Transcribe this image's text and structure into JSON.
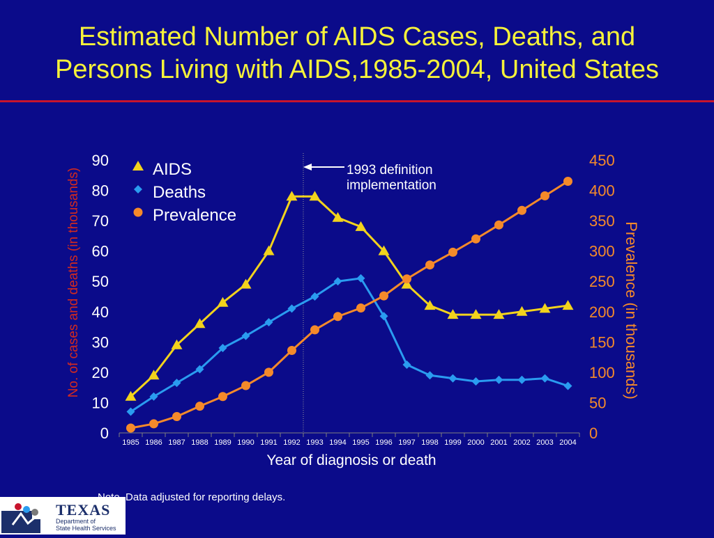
{
  "title_line1": "Estimated Number of AIDS Cases, Deaths, and",
  "title_line2": "Persons Living with AIDS,1985-2004, United States",
  "note": "Note. Data adjusted for reporting delays.",
  "logo": {
    "name": "TEXAS",
    "subtitle_line1": "Department of",
    "subtitle_line2": "State Health Services"
  },
  "colors": {
    "background": "#0b0b8a",
    "title": "#f6f23a",
    "aids": "#f2d31c",
    "deaths": "#2a9cf0",
    "prevalence": "#f58a2a",
    "rule": "#c8142d",
    "left_axis_label": "#d42a1e",
    "right_axis_label": "#f58a2a"
  },
  "chart_data": {
    "type": "line",
    "title": "Estimated Number of AIDS Cases, Deaths, and Persons Living with AIDS,1985-2004, United States",
    "xlabel": "Year of diagnosis or death",
    "ylabel": "No. of cases and deaths (in thousands)",
    "y2label": "Prevalence (in thousands)",
    "categories": [
      "1985",
      "1986",
      "1987",
      "1988",
      "1989",
      "1990",
      "1991",
      "1992",
      "1993",
      "1994",
      "1995",
      "1996",
      "1997",
      "1998",
      "1999",
      "2000",
      "2001",
      "2002",
      "2003",
      "2004"
    ],
    "ylim": [
      0,
      90
    ],
    "y2lim": [
      0,
      450
    ],
    "yticks": [
      "0",
      "10",
      "20",
      "30",
      "40",
      "50",
      "60",
      "70",
      "80",
      "90"
    ],
    "y2ticks": [
      "0",
      "50",
      "100",
      "150",
      "200",
      "250",
      "300",
      "350",
      "400",
      "450"
    ],
    "legend_position": "top-left",
    "series": [
      {
        "name": "AIDS",
        "axis": "left",
        "marker": "triangle",
        "values": [
          12,
          19,
          29,
          36,
          43,
          49,
          60,
          78,
          78,
          71,
          68,
          60,
          49,
          42,
          39,
          39,
          39,
          40,
          41,
          42
        ]
      },
      {
        "name": "Deaths",
        "axis": "left",
        "marker": "diamond",
        "values": [
          7,
          12,
          16.5,
          21,
          28,
          32,
          36.5,
          41,
          45,
          50,
          51,
          38.5,
          22.5,
          19,
          18,
          17,
          17.5,
          17.5,
          18,
          15.5
        ]
      },
      {
        "name": "Prevalence",
        "axis": "right",
        "marker": "circle",
        "values": [
          8,
          15,
          27,
          44,
          60,
          78,
          100,
          136,
          170,
          192,
          206,
          226,
          254,
          277,
          298,
          320,
          343,
          367,
          391,
          415
        ]
      }
    ],
    "annotation": {
      "line1": "1993 definition",
      "line2": "implementation",
      "at_category": "1992"
    }
  }
}
